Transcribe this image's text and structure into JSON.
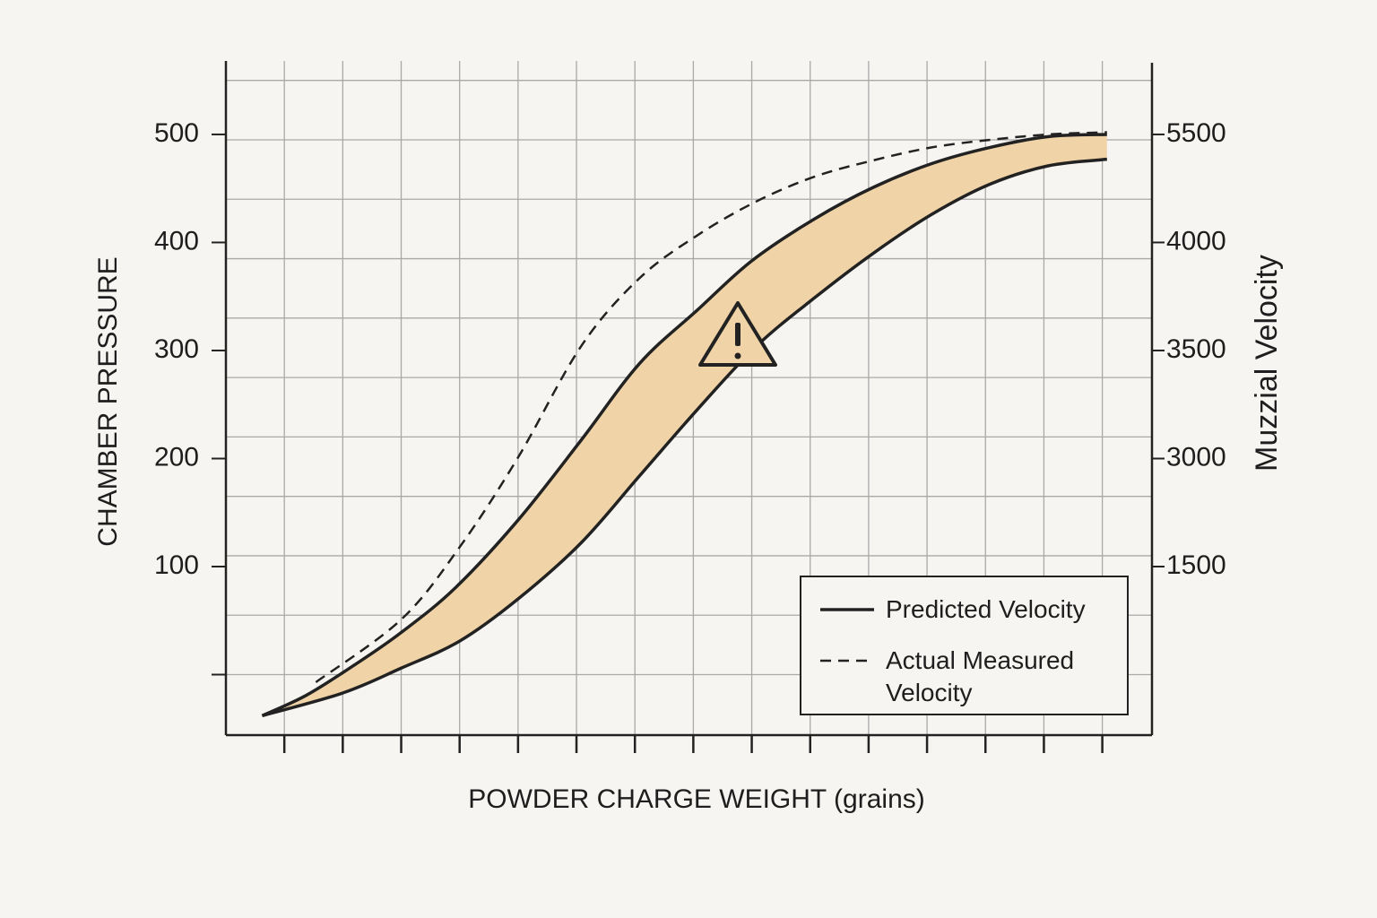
{
  "chart_data": {
    "type": "line",
    "xlabel": "POWDER CHARGE WEIGHT (grains)",
    "ylabel": "CHAMBER PRESSURE",
    "y2label": "Muzzial Velocity",
    "xlim": [
      0,
      15.85
    ],
    "xticks": [
      1,
      2,
      3,
      4,
      5,
      6,
      7,
      8,
      9,
      10,
      11,
      12,
      13,
      14,
      15
    ],
    "ylim": [
      -56,
      568
    ],
    "yticks": [
      500,
      400,
      300,
      200,
      100
    ],
    "yminor": [
      0,
      55,
      110,
      165,
      220,
      275,
      330,
      385,
      440,
      495,
      550
    ],
    "y2ticklabels": [
      "5500",
      "4000",
      "3500",
      "3000",
      "1500"
    ],
    "grid": true,
    "band_color": "#f0d4a8",
    "series": [
      {
        "name": "Predicted Velocity",
        "color": "#222222",
        "dash": false,
        "x": [
          0.62,
          1.38,
          2.23,
          3,
          3.92,
          5,
          6.08,
          7.08,
          8.08,
          9,
          10.08,
          11.08,
          12.08,
          13.08,
          14.08,
          15.08
        ],
        "values": [
          -38,
          -19,
          10,
          39,
          80,
          143,
          217,
          288,
          338,
          383,
          422,
          451,
          473,
          488,
          498,
          500
        ]
      },
      {
        "name": "Actual Measured Velocity",
        "color": "#222222",
        "dash": true,
        "x": [
          1.54,
          3,
          4,
          5,
          6.08,
          7.08,
          8.08,
          9.08,
          10.08,
          11.08,
          12.08,
          13.08,
          14.08,
          15.08
        ],
        "values": [
          -7,
          51,
          118,
          201,
          304,
          367,
          407,
          438,
          461,
          476,
          488,
          495,
          500,
          502
        ]
      }
    ],
    "band_lower": {
      "x": [
        0.62,
        2,
        3,
        4,
        5,
        6.08,
        7.08,
        8.08,
        9.08,
        10.08,
        11.08,
        12.08,
        13.08,
        14.08,
        15.08
      ],
      "values": [
        -38,
        -17,
        6,
        31,
        70,
        122,
        184,
        246,
        304,
        349,
        390,
        426,
        454,
        471,
        477
      ]
    }
  }
}
